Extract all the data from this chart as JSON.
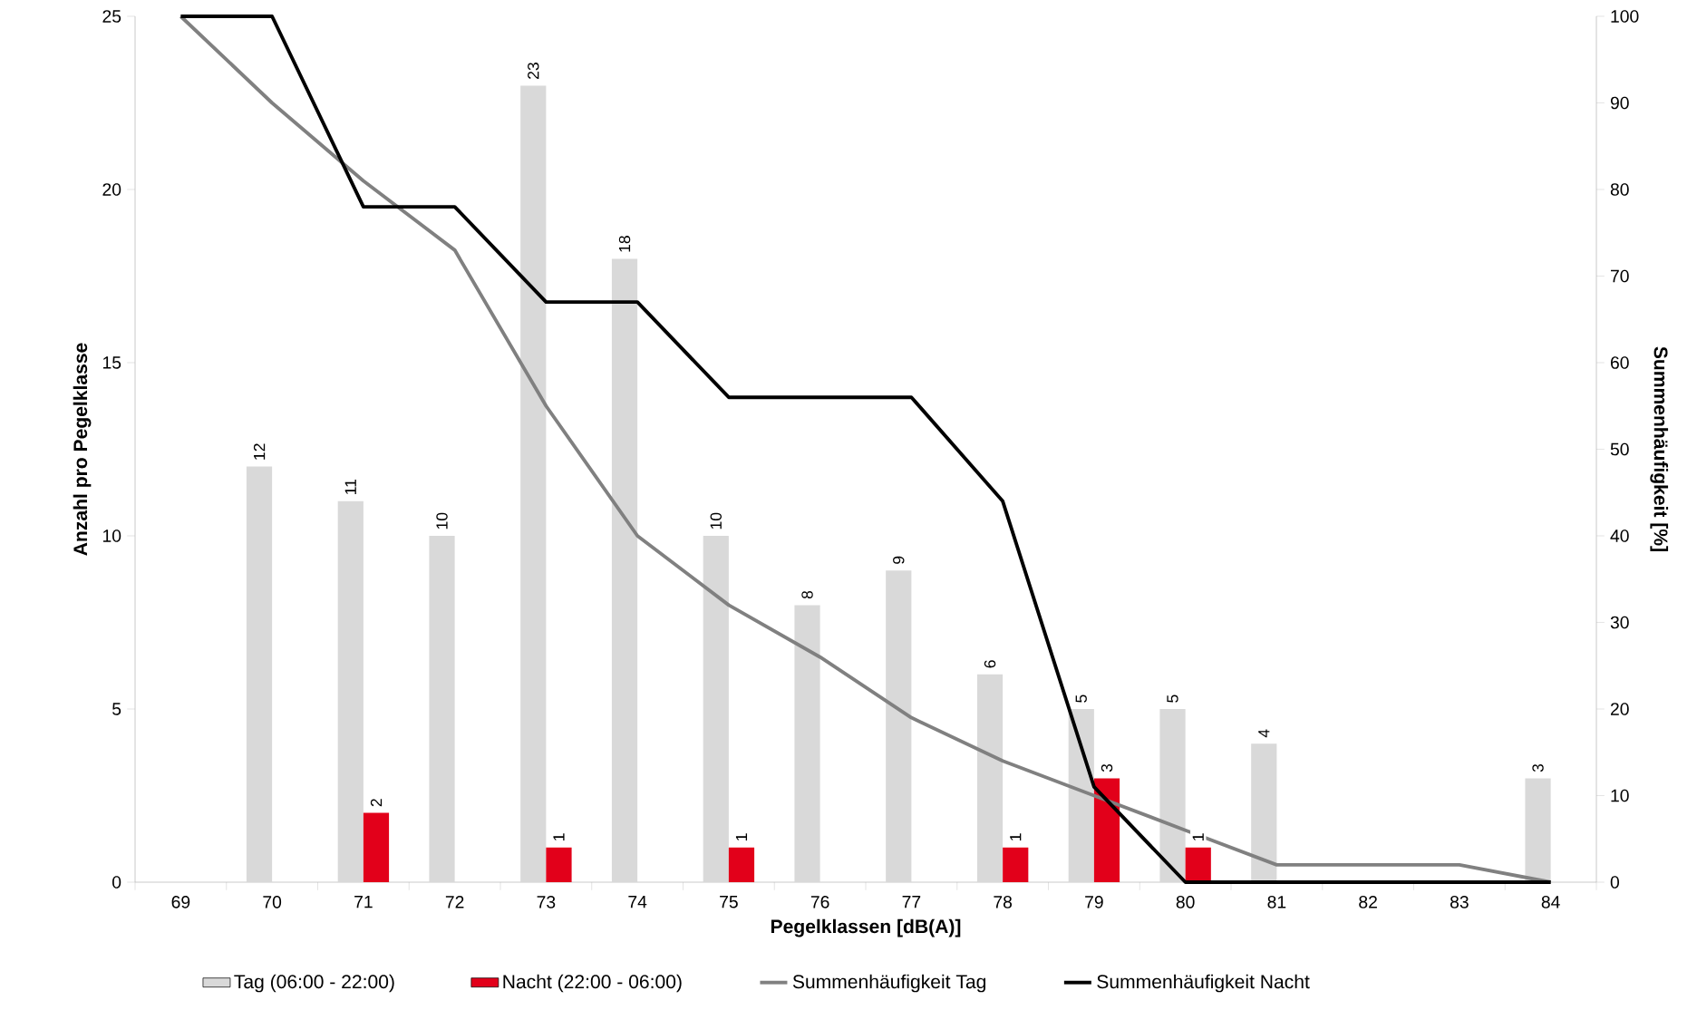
{
  "chart_data": {
    "type": "bar",
    "xlabel": "Pegelklassen [dB(A)]",
    "ylabel": "Anzahl pro Pegelklasse",
    "y2label": "Summenhäufigkeit [%]",
    "categories": [
      "69",
      "70",
      "71",
      "72",
      "73",
      "74",
      "75",
      "76",
      "77",
      "78",
      "79",
      "80",
      "81",
      "82",
      "83",
      "84"
    ],
    "ylim": [
      0,
      25
    ],
    "yticks": [
      0,
      5,
      10,
      15,
      20,
      25
    ],
    "y2lim": [
      0,
      100
    ],
    "y2ticks": [
      0,
      10,
      20,
      30,
      40,
      50,
      60,
      70,
      80,
      90,
      100
    ],
    "legend": "bottom",
    "grid": false,
    "series": [
      {
        "name": "Tag (06:00 - 22:00)",
        "color": "#d9d9d9",
        "values": [
          null,
          12,
          11,
          10,
          23,
          18,
          10,
          8,
          9,
          6,
          5,
          5,
          4,
          null,
          null,
          3
        ],
        "value_labels": [
          null,
          "12",
          "11",
          "10",
          "23",
          "18",
          "10",
          "8",
          "9",
          "6",
          "5",
          "5",
          "4",
          null,
          null,
          "3"
        ]
      },
      {
        "name": "Nacht (22:00 - 06:00)",
        "color": "#e2001a",
        "values": [
          null,
          null,
          2,
          null,
          1,
          null,
          1,
          null,
          null,
          1,
          3,
          1,
          null,
          null,
          null,
          null
        ],
        "value_labels": [
          null,
          null,
          "2",
          null,
          "1",
          null,
          "1",
          null,
          null,
          "1",
          "3",
          "1",
          null,
          null,
          null,
          null
        ]
      },
      {
        "name": "Summenhäufigkeit Tag",
        "type": "line",
        "axis": "y2",
        "color": "#808080",
        "values": [
          100,
          90,
          81,
          73,
          55,
          40,
          32,
          26,
          19,
          14,
          10,
          6,
          2,
          2,
          2,
          0
        ]
      },
      {
        "name": "Summenhäufigkeit Nacht",
        "type": "line",
        "axis": "y2",
        "color": "#000000",
        "values": [
          100,
          100,
          78,
          78,
          67,
          67,
          56,
          56,
          56,
          44,
          11,
          0,
          0,
          0,
          0,
          0
        ]
      }
    ]
  }
}
